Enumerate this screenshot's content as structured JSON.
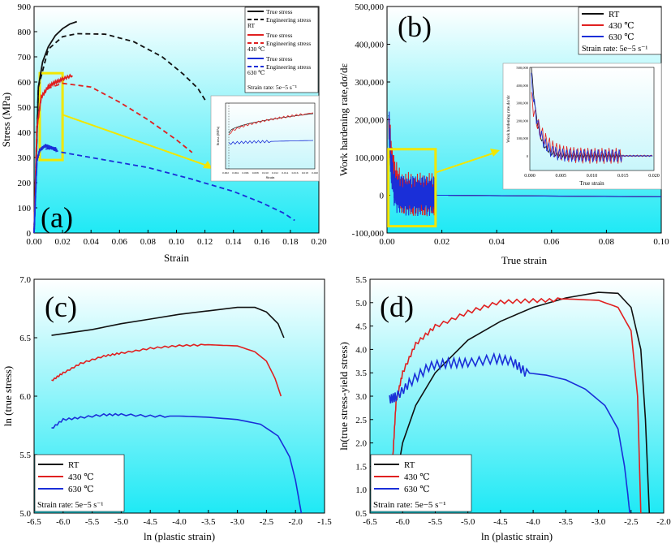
{
  "colors": {
    "rt": "#111111",
    "t430": "#e02020",
    "t630": "#1a2fd8",
    "highlight": "#f2e600",
    "bg_top": "#ffffff",
    "bg_bottom": "#1fe9f5"
  },
  "chart_data": [
    {
      "panel": "a",
      "panel_label": "(a)",
      "type": "line",
      "xlabel": "Strain",
      "ylabel": "Stress (MPa)",
      "xlim": [
        0,
        0.2
      ],
      "ylim": [
        0,
        900
      ],
      "xticks": [
        "0.00",
        "0.02",
        "0.04",
        "0.06",
        "0.08",
        "0.10",
        "0.12",
        "0.14",
        "0.16",
        "0.18",
        "0.20"
      ],
      "yticks": [
        "0",
        "100",
        "200",
        "300",
        "400",
        "500",
        "600",
        "700",
        "800",
        "900"
      ],
      "legend_groups": [
        "RT",
        "430 ℃",
        "630 ℃"
      ],
      "legend_entries": [
        "True stress",
        "Engineering stress"
      ],
      "strain_rate_note": "Strain rate: 5e−5 s⁻¹",
      "series": [
        {
          "name": "RT True stress",
          "color_key": "rt",
          "dash": false,
          "x": [
            0,
            0.003,
            0.006,
            0.01,
            0.015,
            0.02,
            0.025,
            0.03
          ],
          "y": [
            0,
            580,
            680,
            740,
            785,
            812,
            830,
            840
          ]
        },
        {
          "name": "RT Engineering stress",
          "color_key": "rt",
          "dash": true,
          "x": [
            0,
            0.003,
            0.01,
            0.02,
            0.03,
            0.05,
            0.07,
            0.09,
            0.105,
            0.115,
            0.121
          ],
          "y": [
            0,
            580,
            730,
            780,
            792,
            790,
            760,
            700,
            630,
            575,
            520
          ]
        },
        {
          "name": "430 ℃ True stress",
          "color_key": "t430",
          "dash": false,
          "x": [
            0,
            0.002,
            0.005,
            0.01,
            0.015,
            0.02,
            0.027
          ],
          "y": [
            0,
            420,
            540,
            580,
            600,
            612,
            625
          ]
        },
        {
          "name": "430 ℃ Engineering stress",
          "color_key": "t430",
          "dash": true,
          "x": [
            0,
            0.002,
            0.005,
            0.01,
            0.02,
            0.04,
            0.06,
            0.08,
            0.1,
            0.111
          ],
          "y": [
            0,
            420,
            540,
            575,
            595,
            580,
            520,
            450,
            370,
            320
          ]
        },
        {
          "name": "630 ℃ True stress",
          "color_key": "t630",
          "dash": false,
          "x": [
            0,
            0.002,
            0.004,
            0.008,
            0.012,
            0.016
          ],
          "y": [
            0,
            290,
            330,
            345,
            340,
            335
          ]
        },
        {
          "name": "630 ℃ Engineering stress",
          "color_key": "t630",
          "dash": true,
          "x": [
            0,
            0.002,
            0.004,
            0.01,
            0.02,
            0.05,
            0.08,
            0.11,
            0.14,
            0.16,
            0.175,
            0.183
          ],
          "y": [
            0,
            290,
            330,
            335,
            320,
            290,
            260,
            215,
            165,
            120,
            80,
            50
          ]
        }
      ],
      "inset": {
        "xlabel": "Strain",
        "ylabel": "Stress (MPa)",
        "xticks": [
          "0.002",
          "0.004",
          "0.006",
          "0.008",
          "0.010",
          "0.012",
          "0.014",
          "0.016",
          "0.018",
          "0.020"
        ]
      }
    },
    {
      "panel": "b",
      "panel_label": "(b)",
      "type": "line",
      "xlabel": "True strain",
      "ylabel": "Work hardening rate,dσ/dε",
      "xlim": [
        0,
        0.1
      ],
      "ylim": [
        -100000,
        500000
      ],
      "xticks": [
        "0.00",
        "0.02",
        "0.04",
        "0.06",
        "0.08",
        "0.10"
      ],
      "yticks": [
        "-100,000",
        "0",
        "100,000",
        "200,000",
        "300,000",
        "400,000",
        "500,000"
      ],
      "legend": [
        "RT",
        "430 ℃",
        "630 ℃"
      ],
      "strain_rate_note": "Strain rate: 5e−5 s⁻¹",
      "inset": {
        "xlabel": "True strain",
        "ylabel": "Work hardening rate,dσ/dε",
        "xticks": [
          "0.000",
          "0.005",
          "0.010",
          "0.015",
          "0.020"
        ],
        "yticks": [
          "0",
          "100,000",
          "200,000",
          "300,000",
          "400,000",
          "500,000"
        ]
      }
    },
    {
      "panel": "c",
      "panel_label": "(c)",
      "type": "line",
      "xlabel": "ln (plastic strain)",
      "ylabel": "ln (true stress)",
      "xlim": [
        -6.5,
        -1.5
      ],
      "ylim": [
        5.0,
        7.0
      ],
      "xticks": [
        "-6.5",
        "-6.0",
        "-5.5",
        "-5.0",
        "-4.5",
        "-4.0",
        "-3.5",
        "-3.0",
        "-2.5",
        "-2.0",
        "-1.5"
      ],
      "yticks": [
        "5.0",
        "5.5",
        "6.0",
        "6.5",
        "7.0"
      ],
      "legend": [
        "RT",
        "430 ℃",
        "630 ℃"
      ],
      "strain_rate_note": "Strain rate: 5e−5 s⁻¹",
      "series": [
        {
          "name": "RT",
          "color_key": "rt",
          "x": [
            -6.2,
            -5.5,
            -5.0,
            -4.5,
            -4.0,
            -3.5,
            -3.0,
            -2.7,
            -2.5,
            -2.3,
            -2.2
          ],
          "y": [
            6.52,
            6.57,
            6.62,
            6.66,
            6.7,
            6.73,
            6.76,
            6.76,
            6.72,
            6.62,
            6.5
          ]
        },
        {
          "name": "430 ℃",
          "color_key": "t430",
          "x": [
            -6.2,
            -6.0,
            -5.7,
            -5.3,
            -5.0,
            -4.5,
            -4.0,
            -3.5,
            -3.0,
            -2.7,
            -2.5,
            -2.35,
            -2.25
          ],
          "y": [
            6.13,
            6.2,
            6.28,
            6.34,
            6.37,
            6.41,
            6.43,
            6.44,
            6.43,
            6.38,
            6.3,
            6.15,
            6.0
          ]
        },
        {
          "name": "630 ℃",
          "color_key": "t630",
          "x": [
            -6.2,
            -6.0,
            -5.7,
            -5.3,
            -5.0,
            -4.5,
            -4.0,
            -3.5,
            -3.0,
            -2.6,
            -2.3,
            -2.1,
            -2.0,
            -1.9
          ],
          "y": [
            5.72,
            5.8,
            5.82,
            5.84,
            5.84,
            5.83,
            5.83,
            5.82,
            5.8,
            5.76,
            5.66,
            5.48,
            5.28,
            5.0
          ]
        }
      ]
    },
    {
      "panel": "d",
      "panel_label": "(d)",
      "type": "line",
      "xlabel": "ln (plastic strain)",
      "ylabel": "ln(true stress-yield stress)",
      "xlim": [
        -6.5,
        -2.0
      ],
      "ylim": [
        0.5,
        5.5
      ],
      "xticks": [
        "-6.5",
        "-6.0",
        "-5.5",
        "-5.0",
        "-4.5",
        "-4.0",
        "-3.5",
        "-3.0",
        "-2.5",
        "-2.0"
      ],
      "yticks": [
        "0.5",
        "1.0",
        "1.5",
        "2.0",
        "2.5",
        "3.0",
        "3.5",
        "4.0",
        "4.5",
        "5.0",
        "5.5"
      ],
      "legend": [
        "RT",
        "430 ℃",
        "630 ℃"
      ],
      "strain_rate_note": "Strain rate: 5e−5 s⁻¹",
      "series": [
        {
          "name": "RT",
          "color_key": "rt",
          "x": [
            -6.1,
            -6.0,
            -5.8,
            -5.5,
            -5.0,
            -4.5,
            -4.0,
            -3.5,
            -3.0,
            -2.7,
            -2.5,
            -2.35,
            -2.28,
            -2.22
          ],
          "y": [
            1.2,
            2.0,
            2.8,
            3.5,
            4.2,
            4.6,
            4.9,
            5.1,
            5.22,
            5.2,
            4.9,
            4.0,
            2.5,
            0.5
          ]
        },
        {
          "name": "430 ℃",
          "color_key": "t430",
          "x": [
            -6.15,
            -6.1,
            -6.0,
            -5.8,
            -5.5,
            -5.0,
            -4.5,
            -4.0,
            -3.5,
            -3.0,
            -2.7,
            -2.5,
            -2.4,
            -2.35
          ],
          "y": [
            1.7,
            2.9,
            3.5,
            4.1,
            4.5,
            4.8,
            5.0,
            5.05,
            5.08,
            5.05,
            4.9,
            4.4,
            3.0,
            0.5
          ]
        },
        {
          "name": "630 ℃",
          "color_key": "t630",
          "x": [
            -6.2,
            -6.1,
            -5.9,
            -5.6,
            -5.3,
            -5.0,
            -4.6,
            -4.3,
            -4.1,
            -3.8,
            -3.5,
            -3.2,
            -2.9,
            -2.7,
            -2.6,
            -2.55,
            -2.52
          ],
          "y": [
            2.9,
            3.0,
            3.3,
            3.6,
            3.7,
            3.75,
            3.8,
            3.7,
            3.5,
            3.45,
            3.35,
            3.15,
            2.8,
            2.3,
            1.5,
            0.9,
            0.5
          ]
        }
      ]
    }
  ]
}
